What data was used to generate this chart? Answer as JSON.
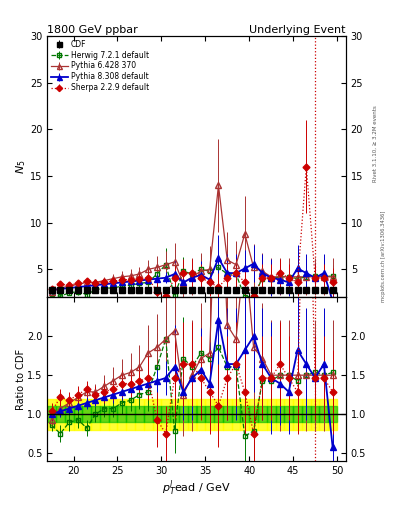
{
  "title_left": "1800 GeV ppbar",
  "title_right": "Underlying Event",
  "ylabel_main": "N$_5$",
  "ylabel_ratio": "Ratio to CDF",
  "xlabel": "p$_T^l$ead / GeV",
  "right_label": "Rivet 3.1.10, ≥ 3.2M events",
  "right_label2": "mcplots.cern.ch [arXiv:1306.3436]",
  "xmin": 17.0,
  "xmax": 51.0,
  "ymin_main": 2.0,
  "ymax_main": 30.0,
  "ymin_ratio": 0.4,
  "ymax_ratio": 2.5,
  "vline_x": 47.5,
  "yticks_main": [
    5,
    10,
    15,
    20,
    25,
    30
  ],
  "yticks_ratio": [
    0.5,
    1.0,
    1.5,
    2.0
  ],
  "cdf_x": [
    17.5,
    18.5,
    19.5,
    20.5,
    21.5,
    22.5,
    23.5,
    24.5,
    25.5,
    26.5,
    27.5,
    28.5,
    29.5,
    30.5,
    31.5,
    32.5,
    33.5,
    34.5,
    35.5,
    36.5,
    37.5,
    38.5,
    39.5,
    40.5,
    41.5,
    42.5,
    43.5,
    44.5,
    45.5,
    46.5,
    47.5,
    48.5,
    49.5
  ],
  "cdf_y": [
    2.8,
    2.8,
    2.8,
    2.8,
    2.8,
    2.8,
    2.8,
    2.8,
    2.8,
    2.8,
    2.8,
    2.8,
    2.8,
    2.8,
    2.8,
    2.8,
    2.8,
    2.8,
    2.8,
    2.8,
    2.8,
    2.8,
    2.8,
    2.8,
    2.8,
    2.8,
    2.8,
    2.8,
    2.8,
    2.8,
    2.8,
    2.8,
    2.8
  ],
  "cdf_yerr": [
    0.05,
    0.05,
    0.05,
    0.05,
    0.05,
    0.05,
    0.05,
    0.05,
    0.05,
    0.05,
    0.05,
    0.05,
    0.05,
    0.05,
    0.05,
    0.05,
    0.05,
    0.05,
    0.05,
    0.05,
    0.05,
    0.05,
    0.05,
    0.05,
    0.05,
    0.05,
    0.05,
    0.05,
    0.05,
    0.05,
    0.05,
    0.05,
    0.05
  ],
  "herwig_x": [
    17.5,
    18.5,
    19.5,
    20.5,
    21.5,
    22.5,
    23.5,
    24.5,
    25.5,
    26.5,
    27.5,
    28.5,
    29.5,
    30.5,
    31.5,
    32.5,
    33.5,
    34.5,
    35.5,
    36.5,
    37.5,
    38.5,
    39.5,
    40.5,
    41.5,
    42.5,
    43.5,
    44.5,
    45.5,
    46.5,
    47.5,
    48.5,
    49.5
  ],
  "herwig_y": [
    2.4,
    2.1,
    2.5,
    2.6,
    2.3,
    2.8,
    3.0,
    3.0,
    3.2,
    3.3,
    3.5,
    3.6,
    4.5,
    5.5,
    2.2,
    4.8,
    4.5,
    5.0,
    4.8,
    5.2,
    4.5,
    4.5,
    2.0,
    2.2,
    4.0,
    4.0,
    4.2,
    4.2,
    4.0,
    4.2,
    4.3,
    4.2,
    4.3
  ],
  "herwig_yerr": [
    0.2,
    0.3,
    0.3,
    0.3,
    0.3,
    0.3,
    0.3,
    0.3,
    0.4,
    0.4,
    0.5,
    0.7,
    1.2,
    1.8,
    0.8,
    1.5,
    1.5,
    1.5,
    1.5,
    1.5,
    1.5,
    1.5,
    1.0,
    1.0,
    1.2,
    1.2,
    1.2,
    1.2,
    1.2,
    1.2,
    1.2,
    1.2,
    1.2
  ],
  "pythia6_x": [
    17.5,
    18.5,
    19.5,
    20.5,
    21.5,
    22.5,
    23.5,
    24.5,
    25.5,
    26.5,
    27.5,
    28.5,
    29.5,
    30.5,
    31.5,
    32.5,
    33.5,
    34.5,
    35.5,
    36.5,
    37.5,
    38.5,
    39.5,
    40.5,
    41.5,
    42.5,
    43.5,
    44.5,
    45.5,
    46.5,
    47.5,
    48.5,
    49.5
  ],
  "pythia6_y": [
    2.6,
    3.0,
    3.2,
    3.4,
    3.6,
    3.6,
    3.8,
    4.0,
    4.2,
    4.3,
    4.5,
    5.0,
    5.2,
    5.5,
    5.8,
    3.5,
    4.2,
    4.8,
    5.0,
    14.0,
    6.0,
    5.5,
    8.8,
    5.2,
    4.8,
    4.2,
    4.2,
    4.2,
    4.2,
    4.2,
    4.2,
    4.2,
    4.2
  ],
  "pythia6_yerr": [
    0.3,
    0.3,
    0.3,
    0.3,
    0.3,
    0.3,
    0.4,
    0.5,
    0.6,
    0.7,
    0.8,
    1.0,
    1.2,
    1.5,
    2.0,
    1.5,
    2.0,
    2.0,
    2.5,
    5.0,
    3.0,
    2.5,
    4.0,
    2.5,
    2.0,
    2.0,
    2.0,
    2.0,
    2.0,
    2.0,
    2.0,
    2.0,
    2.0
  ],
  "pythia8_x": [
    17.5,
    18.5,
    19.5,
    20.5,
    21.5,
    22.5,
    23.5,
    24.5,
    25.5,
    26.5,
    27.5,
    28.5,
    29.5,
    30.5,
    31.5,
    32.5,
    33.5,
    34.5,
    35.5,
    36.5,
    37.5,
    38.5,
    39.5,
    40.5,
    41.5,
    42.5,
    43.5,
    44.5,
    45.5,
    46.5,
    47.5,
    48.5,
    49.5
  ],
  "pythia8_y": [
    2.8,
    2.9,
    3.0,
    3.1,
    3.2,
    3.3,
    3.4,
    3.5,
    3.6,
    3.7,
    3.8,
    3.9,
    4.0,
    4.1,
    4.5,
    3.6,
    4.1,
    4.4,
    3.9,
    6.2,
    4.6,
    4.6,
    5.1,
    5.6,
    4.6,
    4.1,
    3.9,
    3.6,
    5.1,
    4.6,
    4.1,
    4.6,
    1.6
  ],
  "pythia8_yerr": [
    0.2,
    0.2,
    0.2,
    0.2,
    0.2,
    0.2,
    0.2,
    0.3,
    0.3,
    0.3,
    0.4,
    0.5,
    0.5,
    0.6,
    1.5,
    1.0,
    1.5,
    1.5,
    1.5,
    2.5,
    2.0,
    2.0,
    2.0,
    2.0,
    2.0,
    2.0,
    1.5,
    1.5,
    2.5,
    2.0,
    1.5,
    2.0,
    1.5
  ],
  "sherpa_x": [
    17.5,
    18.5,
    19.5,
    20.5,
    21.5,
    22.5,
    23.5,
    24.5,
    25.5,
    26.5,
    27.5,
    28.5,
    29.5,
    30.5,
    31.5,
    32.5,
    33.5,
    34.5,
    35.5,
    36.5,
    37.5,
    38.5,
    39.5,
    40.5,
    41.5,
    42.5,
    43.5,
    44.5,
    45.5,
    46.5,
    47.5,
    48.5,
    49.5
  ],
  "sherpa_y": [
    2.9,
    3.4,
    3.3,
    3.5,
    3.7,
    3.5,
    3.6,
    3.7,
    3.9,
    3.9,
    4.0,
    4.1,
    2.6,
    2.1,
    4.1,
    4.6,
    4.6,
    4.1,
    3.6,
    3.1,
    4.1,
    4.6,
    3.6,
    2.1,
    4.1,
    4.1,
    4.6,
    4.1,
    3.6,
    16.0,
    4.1,
    4.1,
    3.6
  ],
  "sherpa_yerr": [
    0.3,
    0.3,
    0.3,
    0.3,
    0.3,
    0.3,
    0.4,
    0.4,
    0.5,
    0.5,
    0.6,
    0.8,
    1.0,
    1.0,
    1.5,
    1.5,
    1.5,
    1.5,
    1.5,
    1.5,
    1.5,
    1.5,
    1.5,
    1.0,
    1.5,
    1.5,
    1.5,
    1.5,
    1.5,
    5.0,
    1.5,
    1.5,
    1.5
  ],
  "cdf_color": "#000000",
  "herwig_color": "#007700",
  "pythia6_color": "#aa3333",
  "pythia8_color": "#0000cc",
  "sherpa_color": "#cc0000"
}
